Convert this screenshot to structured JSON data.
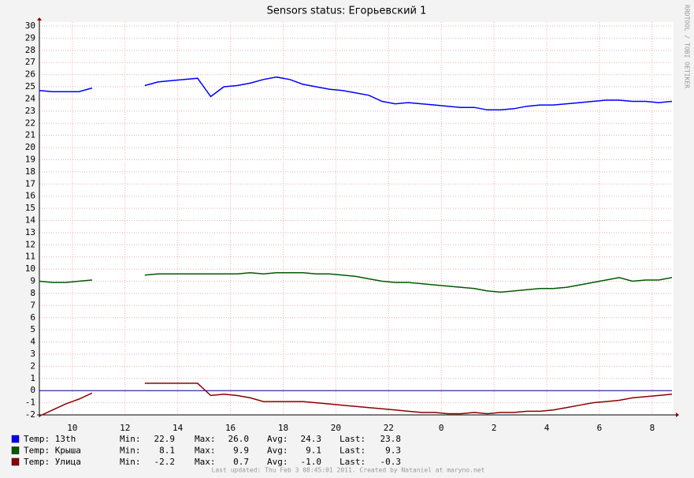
{
  "chart_data": {
    "type": "line",
    "title": "Sensors status: Егорьевский 1",
    "side_text": "RRDTOOL / TOBI OETIKER",
    "footer": "Last updated: Thu Feb  3 08:45:01 2011. Created by Nataniel at maryno.net",
    "x": [
      8.75,
      9.25,
      9.75,
      10.25,
      10.75,
      11.25,
      11.75,
      12.25,
      12.75,
      13.25,
      13.75,
      14.25,
      14.75,
      15.25,
      15.75,
      16.25,
      16.75,
      17.25,
      17.75,
      18.25,
      18.75,
      19.25,
      19.75,
      20.25,
      20.75,
      21.25,
      21.75,
      22.25,
      22.75,
      23.25,
      23.75,
      24.25,
      24.75,
      25.25,
      25.75,
      26.25,
      26.75,
      27.25,
      27.75,
      28.25,
      28.75,
      29.25,
      29.75,
      30.25,
      30.75,
      31.25,
      31.75,
      32.25,
      32.75
    ],
    "xlim": [
      8.75,
      32.75
    ],
    "xticks": [
      10,
      12,
      14,
      16,
      18,
      20,
      22,
      {
        "value": 24,
        "label": "0"
      },
      {
        "value": 26,
        "label": "2"
      },
      {
        "value": 28,
        "label": "4"
      },
      {
        "value": 30,
        "label": "6"
      },
      {
        "value": 32,
        "label": "8"
      }
    ],
    "ylim": [
      -2,
      30
    ],
    "yticks": [
      -2,
      -1,
      0,
      1,
      2,
      3,
      4,
      5,
      6,
      7,
      8,
      9,
      10,
      11,
      12,
      13,
      14,
      15,
      16,
      17,
      18,
      19,
      20,
      21,
      22,
      23,
      24,
      25,
      26,
      27,
      28,
      29,
      30
    ],
    "grid": true,
    "stat_names": [
      "Min:",
      "Max:",
      "Avg:",
      "Last:"
    ],
    "series": [
      {
        "name": "Temp: 13th",
        "color": "#0000ff",
        "values": [
          24.7,
          24.6,
          24.6,
          24.6,
          24.9,
          null,
          null,
          null,
          25.1,
          25.4,
          25.5,
          25.6,
          25.7,
          24.2,
          25.0,
          25.1,
          25.3,
          25.6,
          25.8,
          25.6,
          25.2,
          25.0,
          24.8,
          24.7,
          24.5,
          24.3,
          23.8,
          23.6,
          23.7,
          23.6,
          23.5,
          23.4,
          23.3,
          23.3,
          23.1,
          23.1,
          23.2,
          23.4,
          23.5,
          23.5,
          23.6,
          23.7,
          23.8,
          23.9,
          23.9,
          23.8,
          23.8,
          23.7,
          23.8
        ],
        "stats": [
          22.9,
          {
            "value": 26,
            "label": "26.0"
          },
          24.3,
          23.8
        ]
      },
      {
        "name": "Temp: Крыша",
        "color": "#005a00",
        "values": [
          9.0,
          8.9,
          8.9,
          9.0,
          9.1,
          null,
          null,
          null,
          9.5,
          9.6,
          9.6,
          9.6,
          9.6,
          9.6,
          9.6,
          9.6,
          9.7,
          9.6,
          9.7,
          9.7,
          9.7,
          9.6,
          9.6,
          9.5,
          9.4,
          9.2,
          9.0,
          8.9,
          8.9,
          8.8,
          8.7,
          8.6,
          8.5,
          8.4,
          8.2,
          8.1,
          8.2,
          8.3,
          8.4,
          8.4,
          8.5,
          8.7,
          8.9,
          9.1,
          9.3,
          9.0,
          9.1,
          9.1,
          9.3
        ],
        "stats": [
          8.1,
          9.9,
          9.1,
          9.3
        ]
      },
      {
        "name": "Temp: Улица",
        "color": "#8b0000",
        "values": [
          -2.1,
          -1.6,
          -1.1,
          -0.7,
          -0.2,
          null,
          null,
          null,
          0.6,
          0.6,
          0.6,
          0.6,
          0.6,
          -0.4,
          -0.3,
          -0.4,
          -0.6,
          -0.9,
          -0.9,
          -0.9,
          -0.9,
          -1.0,
          -1.1,
          -1.2,
          -1.3,
          -1.4,
          -1.5,
          -1.6,
          -1.7,
          -1.8,
          -1.8,
          -1.9,
          -1.9,
          -1.8,
          -1.9,
          -1.8,
          -1.8,
          -1.7,
          -1.7,
          -1.6,
          -1.4,
          -1.2,
          -1.0,
          -0.9,
          -0.8,
          -0.6,
          -0.5,
          -0.4,
          -0.3
        ],
        "stats": [
          -2.2,
          0.7,
          {
            "value": -1,
            "label": "-1.0"
          },
          -0.3
        ]
      }
    ]
  }
}
